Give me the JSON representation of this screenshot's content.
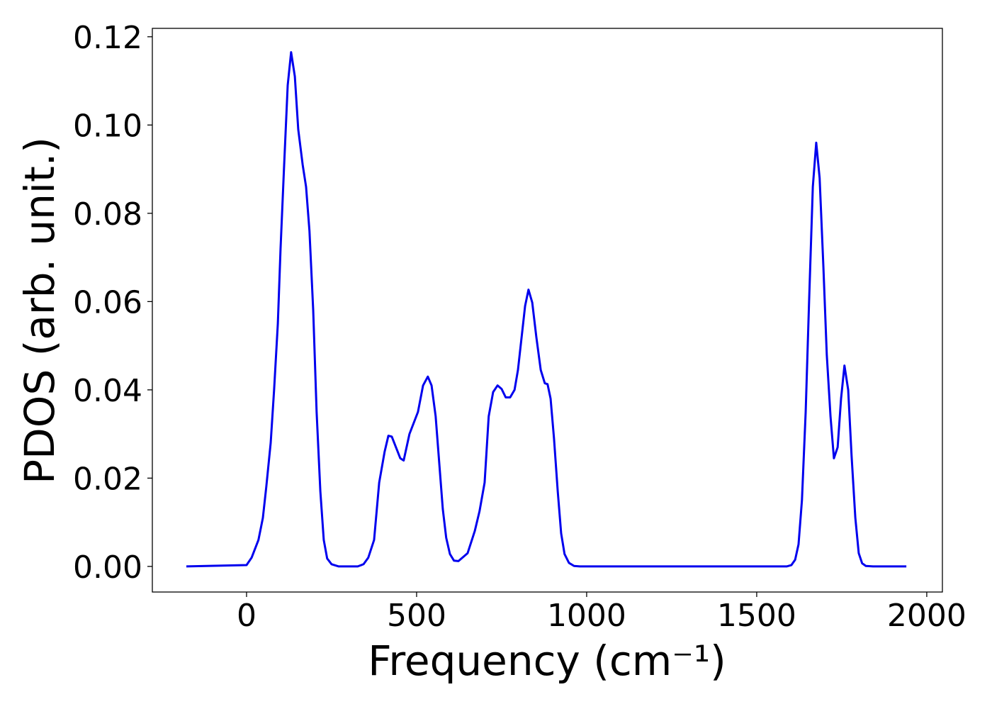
{
  "chart_data": {
    "type": "line",
    "xlabel": "Frequency (cm⁻¹)",
    "ylabel": "PDOS (arb. unit.)",
    "x": [
      -177,
      0,
      15,
      35,
      48,
      58,
      71,
      81,
      92,
      100,
      110,
      121,
      131,
      142,
      152,
      165,
      175,
      185,
      196,
      206,
      217,
      227,
      237,
      250,
      271,
      327,
      344,
      358,
      375,
      390,
      406,
      417,
      427,
      452,
      462,
      479,
      504,
      519,
      533,
      544,
      556,
      577,
      587,
      598,
      610,
      623,
      650,
      671,
      685,
      700,
      712,
      725,
      738,
      750,
      762,
      775,
      788,
      798,
      819,
      829,
      840,
      852,
      865,
      877,
      885,
      894,
      904,
      915,
      925,
      935,
      948,
      963,
      980,
      1588,
      1602,
      1613,
      1623,
      1633,
      1644,
      1654,
      1665,
      1675,
      1685,
      1696,
      1706,
      1717,
      1727,
      1738,
      1748,
      1758,
      1769,
      1779,
      1790,
      1800,
      1810,
      1821,
      1842,
      1940
    ],
    "series": [
      {
        "name": "PDOS",
        "color": "#0000ee",
        "values": [
          0,
          0.0003,
          0.002,
          0.006,
          0.011,
          0.018,
          0.028,
          0.04,
          0.055,
          0.072,
          0.09,
          0.109,
          0.1165,
          0.111,
          0.099,
          0.091,
          0.086,
          0.076,
          0.058,
          0.035,
          0.017,
          0.006,
          0.0018,
          0.0005,
          0,
          0,
          0.0005,
          0.002,
          0.006,
          0.019,
          0.026,
          0.0296,
          0.0294,
          0.0245,
          0.024,
          0.03,
          0.035,
          0.041,
          0.043,
          0.041,
          0.034,
          0.013,
          0.0065,
          0.0028,
          0.0013,
          0.0012,
          0.003,
          0.008,
          0.0125,
          0.019,
          0.034,
          0.0395,
          0.041,
          0.0402,
          0.0383,
          0.0383,
          0.04,
          0.0445,
          0.059,
          0.0627,
          0.0598,
          0.052,
          0.0445,
          0.0415,
          0.0413,
          0.038,
          0.029,
          0.017,
          0.0075,
          0.0028,
          0.0008,
          0.0001,
          0,
          0,
          0.0003,
          0.0015,
          0.005,
          0.015,
          0.035,
          0.06,
          0.086,
          0.096,
          0.088,
          0.068,
          0.048,
          0.034,
          0.0245,
          0.027,
          0.038,
          0.0455,
          0.04,
          0.025,
          0.011,
          0.003,
          0.0007,
          0.0001,
          0,
          0
        ]
      }
    ],
    "xlim": [
      -277,
      2046
    ],
    "ylim": [
      -0.0058,
      0.1219
    ],
    "xticks": [
      0,
      500,
      1000,
      1500,
      2000
    ],
    "yticks": [
      {
        "value": 0,
        "label": "0.00"
      },
      {
        "value": 0.02,
        "label": "0.02"
      },
      {
        "value": 0.04,
        "label": "0.04"
      },
      {
        "value": 0.06,
        "label": "0.06"
      },
      {
        "value": 0.08,
        "label": "0.08"
      },
      {
        "value": 0.1,
        "label": "0.10"
      },
      {
        "value": 0.12,
        "label": "0.12"
      }
    ],
    "grid": false
  }
}
